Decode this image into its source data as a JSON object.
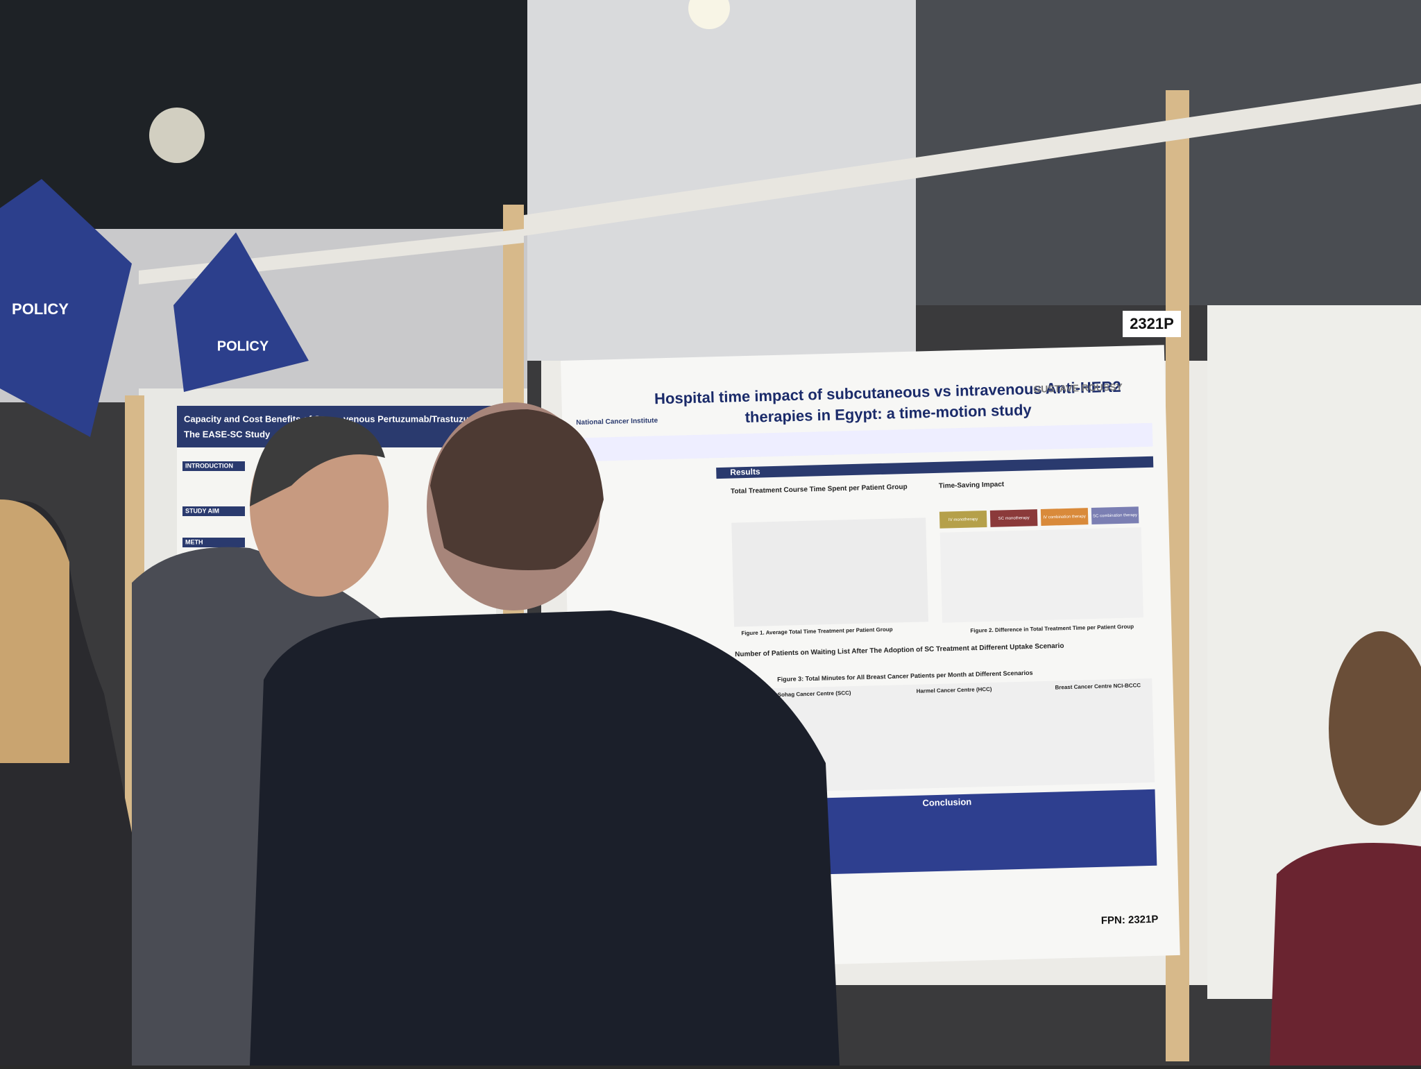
{
  "signs": [
    "POLICY",
    "POLICY"
  ],
  "board_number": "2321P",
  "left_poster": {
    "title_line_1": "Capacity and Cost Benefits of S",
    "title_line_2": "venous Pertuzumab/Trastuzumab:",
    "subtitle": "The EASE-SC Study",
    "sections": [
      "INTRODUCTION",
      "STUDY AIM",
      "METH"
    ]
  },
  "poster": {
    "title_line_1": "Hospital time impact of subcutaneous vs intravenous Anti-HER2",
    "title_line_2": "therapies in Egypt: a time-motion study",
    "logos": [
      "National Cancer Institute",
      "GUSTAVE ROUSSY"
    ],
    "sections": [
      "Results",
      "Conclusion"
    ],
    "headings": [
      "Total Treatment Course Time Spent per Patient Group",
      "Time-Saving Impact",
      "Number of Patients on Waiting List After The Adoption of SC Treatment at Different Uptake Scenario"
    ],
    "legend": [
      "IV monotherapy",
      "SC monotherapy",
      "IV combination therapy",
      "SC combination therapy"
    ],
    "figure_captions": [
      "Figure 1. Average Total Time Treatment per Patient Group",
      "Figure 2. Difference in Total Treatment Time per Patient Group",
      "Figure 3: Total Minutes for All Breast Cancer Patients per Month at Different Scenarios"
    ],
    "centres": [
      "Sohag Cancer Centre (SCC)",
      "Harmel Cancer Centre (HCC)",
      "Breast Cancer Centre NCI-BCCC"
    ],
    "fpn": "FPN: 2321P"
  }
}
